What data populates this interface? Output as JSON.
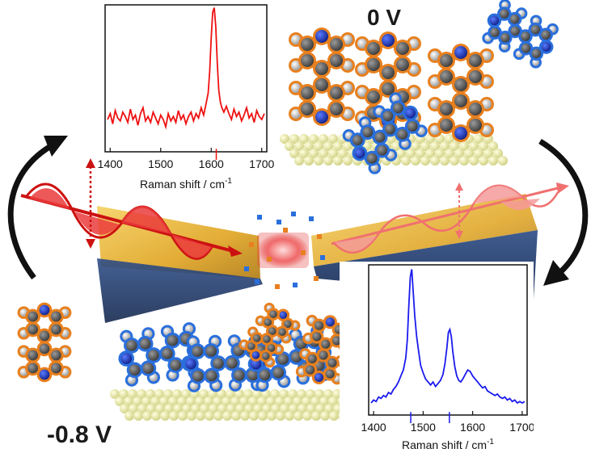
{
  "voltages": {
    "top": "0 V",
    "bottom": "-0.8 V"
  },
  "colors": {
    "spectrum_top": "#ee1111",
    "spectrum_bottom": "#1a1aee",
    "molecule_flat_outline": "#2a6fdc",
    "molecule_upright_outline": "#e8801e",
    "carbon": "#555555",
    "nitrogen": "#1f3fc0",
    "hydrogen": "#b8b8b8",
    "substrate": "#e8e8a0",
    "laser_in": "#dd2222",
    "laser_out": "#f07070",
    "electrode_gold": "#e0a420",
    "electrode_blue": "#1e3a70"
  },
  "chart_data": [
    {
      "type": "line",
      "xlabel_main": "Raman shift / cm",
      "xlabel_sup": "-1",
      "xlim": [
        1390,
        1710
      ],
      "x_ticks": [
        "1400",
        "1500",
        "1600",
        "1700"
      ],
      "marker_line_x": 1610,
      "series": [
        {
          "x": [
            1395,
            1400,
            1405,
            1410,
            1415,
            1420,
            1425,
            1430,
            1435,
            1440,
            1445,
            1450,
            1455,
            1460,
            1465,
            1470,
            1475,
            1480,
            1485,
            1490,
            1495,
            1500,
            1505,
            1510,
            1515,
            1520,
            1525,
            1530,
            1535,
            1540,
            1545,
            1550,
            1555,
            1560,
            1565,
            1570,
            1575,
            1580,
            1585,
            1590,
            1594,
            1597,
            1600,
            1603,
            1606,
            1609,
            1612,
            1615,
            1618,
            1621,
            1625,
            1630,
            1635,
            1640,
            1645,
            1650,
            1655,
            1660,
            1665,
            1670,
            1675,
            1680,
            1685,
            1690,
            1695,
            1700,
            1705
          ],
          "y": [
            0.22,
            0.26,
            0.19,
            0.28,
            0.23,
            0.21,
            0.27,
            0.24,
            0.2,
            0.29,
            0.22,
            0.25,
            0.18,
            0.26,
            0.3,
            0.21,
            0.24,
            0.2,
            0.27,
            0.23,
            0.19,
            0.25,
            0.22,
            0.17,
            0.26,
            0.21,
            0.24,
            0.2,
            0.28,
            0.22,
            0.25,
            0.19,
            0.24,
            0.27,
            0.21,
            0.26,
            0.23,
            0.3,
            0.25,
            0.33,
            0.4,
            0.55,
            0.78,
            0.95,
            0.98,
            0.85,
            0.6,
            0.42,
            0.34,
            0.3,
            0.27,
            0.31,
            0.26,
            0.22,
            0.29,
            0.24,
            0.27,
            0.21,
            0.25,
            0.3,
            0.23,
            0.26,
            0.2,
            0.28,
            0.24,
            0.22,
            0.26
          ]
        }
      ]
    },
    {
      "type": "line",
      "xlabel_main": "Raman shift / cm",
      "xlabel_sup": "-1",
      "xlim": [
        1390,
        1710
      ],
      "x_ticks": [
        "1400",
        "1500",
        "1600",
        "1700"
      ],
      "marker_lines_x": [
        1475,
        1553
      ],
      "series": [
        {
          "x": [
            1395,
            1400,
            1405,
            1410,
            1415,
            1420,
            1425,
            1430,
            1435,
            1440,
            1445,
            1450,
            1455,
            1460,
            1465,
            1468,
            1471,
            1474,
            1477,
            1480,
            1483,
            1487,
            1491,
            1495,
            1500,
            1505,
            1510,
            1515,
            1520,
            1525,
            1530,
            1535,
            1540,
            1544,
            1548,
            1551,
            1554,
            1557,
            1560,
            1564,
            1568,
            1572,
            1576,
            1580,
            1585,
            1590,
            1595,
            1600,
            1605,
            1610,
            1615,
            1620,
            1625,
            1630,
            1635,
            1640,
            1645,
            1650,
            1655,
            1660,
            1665,
            1670,
            1675,
            1680,
            1685,
            1690,
            1695,
            1700,
            1705
          ],
          "y": [
            0.08,
            0.1,
            0.09,
            0.12,
            0.11,
            0.13,
            0.12,
            0.15,
            0.14,
            0.17,
            0.19,
            0.22,
            0.26,
            0.3,
            0.38,
            0.5,
            0.72,
            0.92,
            0.97,
            0.82,
            0.66,
            0.52,
            0.42,
            0.33,
            0.28,
            0.24,
            0.22,
            0.2,
            0.22,
            0.19,
            0.21,
            0.23,
            0.27,
            0.34,
            0.45,
            0.55,
            0.57,
            0.52,
            0.42,
            0.32,
            0.26,
            0.23,
            0.22,
            0.24,
            0.27,
            0.3,
            0.29,
            0.26,
            0.24,
            0.22,
            0.2,
            0.18,
            0.19,
            0.16,
            0.15,
            0.14,
            0.13,
            0.14,
            0.12,
            0.11,
            0.12,
            0.1,
            0.11,
            0.09,
            0.1,
            0.08,
            0.09,
            0.08,
            0.09
          ]
        }
      ]
    }
  ]
}
